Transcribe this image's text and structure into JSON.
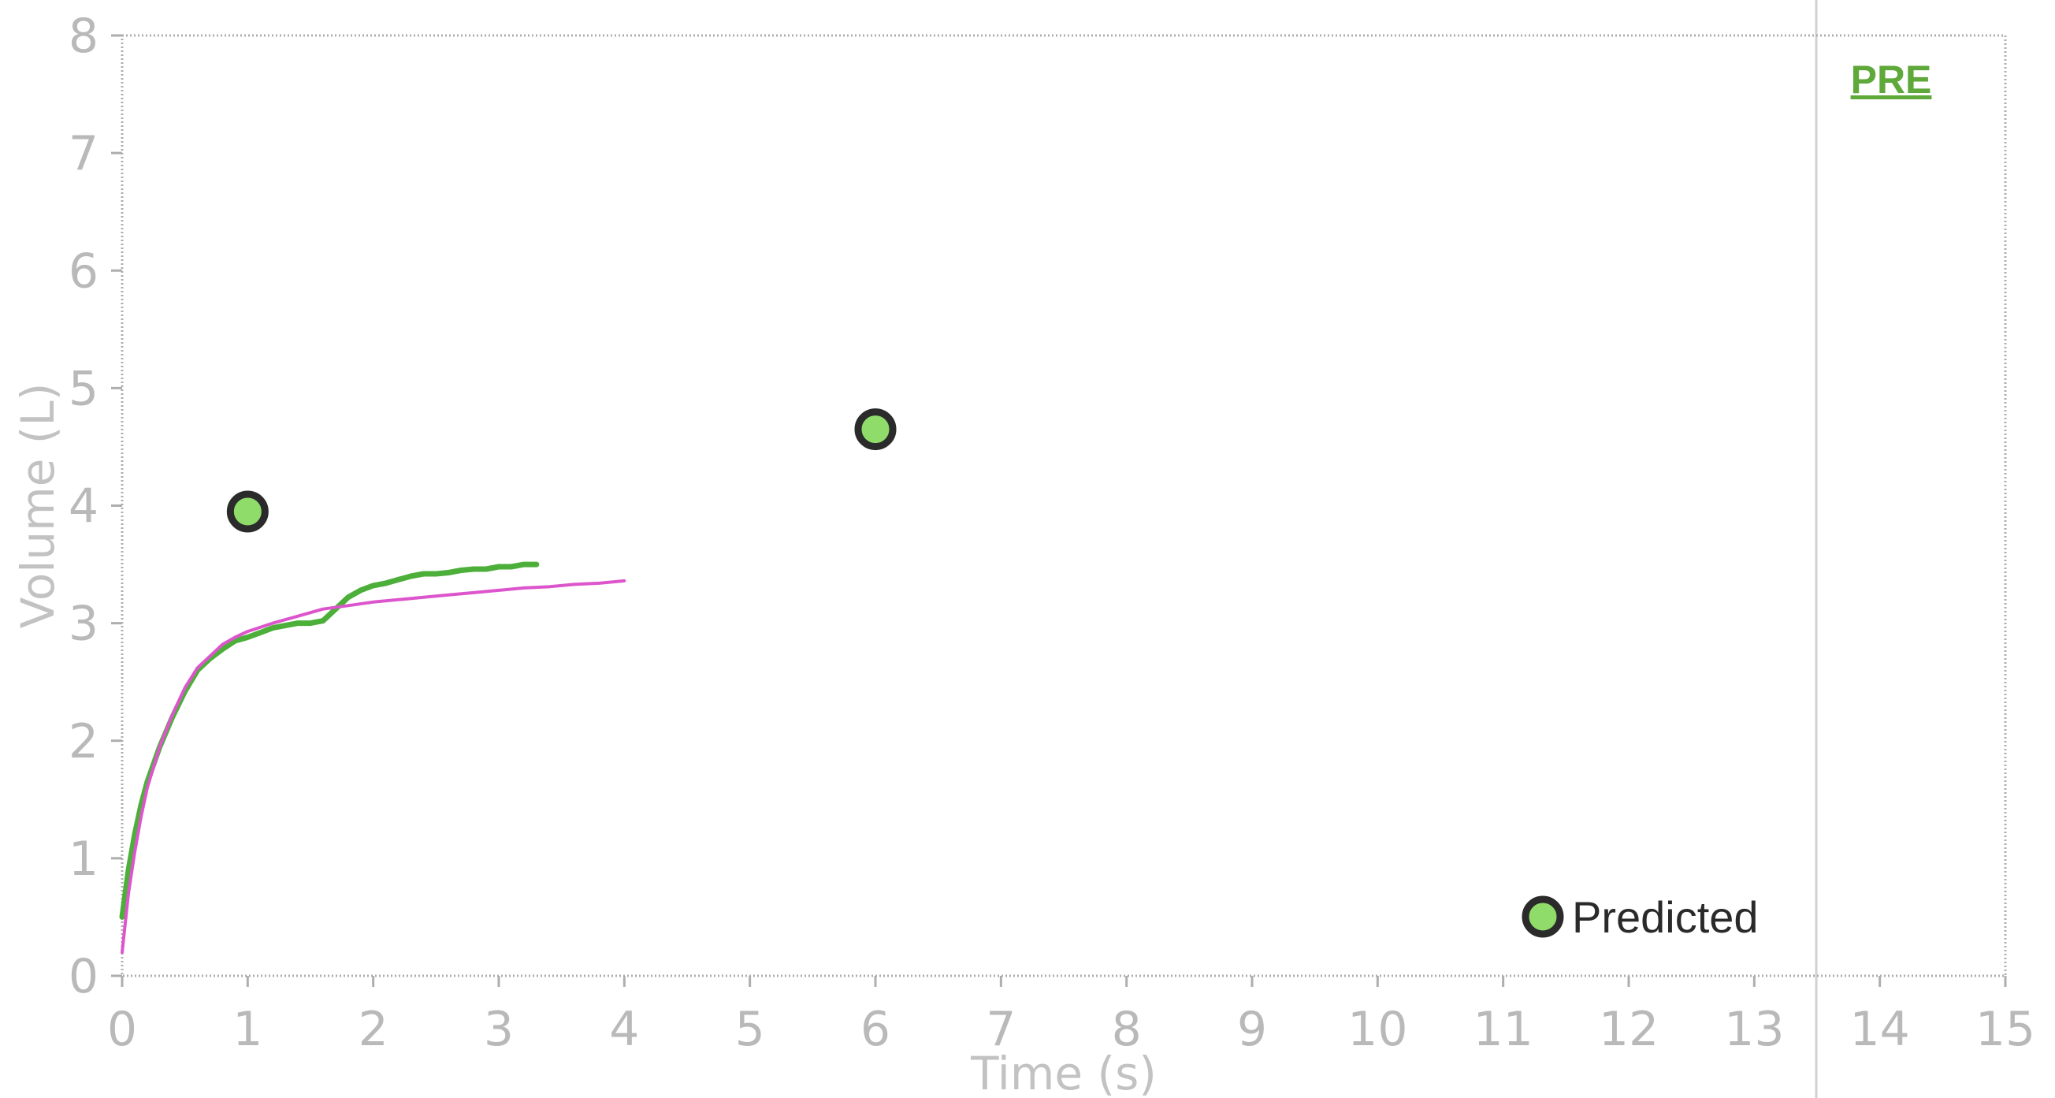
{
  "chart_data": {
    "type": "line",
    "title": "",
    "xlabel": "Time (s)",
    "ylabel": "Volume (L)",
    "xlim": [
      0,
      15
    ],
    "ylim": [
      0,
      8
    ],
    "x_ticks": [
      0,
      1,
      2,
      3,
      4,
      5,
      6,
      7,
      8,
      9,
      10,
      11,
      12,
      13,
      14,
      15
    ],
    "y_ticks": [
      0,
      1,
      2,
      3,
      4,
      5,
      6,
      7,
      8
    ],
    "grid": false,
    "colors": {
      "series_1": "#4caf3a",
      "series_2": "#dd55cc",
      "predicted": "#8fdc6a",
      "pre_label": "#5fa83a"
    },
    "series": [
      {
        "x": [
          0,
          0.05,
          0.1,
          0.15,
          0.2,
          0.3,
          0.4,
          0.5,
          0.6,
          0.7,
          0.8,
          0.9,
          1.0,
          1.1,
          1.2,
          1.3,
          1.4,
          1.5,
          1.6,
          1.7,
          1.8,
          1.9,
          2.0,
          2.1,
          2.2,
          2.3,
          2.4,
          2.5,
          2.6,
          2.7,
          2.8,
          2.9,
          3.0,
          3.1,
          3.2,
          3.3
        ],
        "values": [
          0.5,
          0.9,
          1.2,
          1.45,
          1.65,
          1.95,
          2.2,
          2.42,
          2.6,
          2.7,
          2.78,
          2.85,
          2.88,
          2.92,
          2.96,
          2.98,
          3.0,
          3.0,
          3.02,
          3.12,
          3.22,
          3.28,
          3.32,
          3.34,
          3.37,
          3.4,
          3.42,
          3.42,
          3.43,
          3.45,
          3.46,
          3.46,
          3.48,
          3.48,
          3.5,
          3.5
        ]
      },
      {
        "x": [
          0,
          0.05,
          0.1,
          0.15,
          0.2,
          0.3,
          0.4,
          0.5,
          0.6,
          0.7,
          0.8,
          0.9,
          1.0,
          1.2,
          1.4,
          1.6,
          1.8,
          2.0,
          2.2,
          2.4,
          2.6,
          2.8,
          3.0,
          3.2,
          3.4,
          3.6,
          3.8,
          4.0
        ],
        "values": [
          0.2,
          0.7,
          1.05,
          1.35,
          1.6,
          1.95,
          2.22,
          2.45,
          2.62,
          2.72,
          2.82,
          2.88,
          2.93,
          3.0,
          3.06,
          3.12,
          3.15,
          3.18,
          3.2,
          3.22,
          3.24,
          3.26,
          3.28,
          3.3,
          3.31,
          3.33,
          3.34,
          3.36
        ]
      }
    ],
    "predicted_points": [
      {
        "x": 1,
        "y": 3.95
      },
      {
        "x": 6,
        "y": 4.65
      }
    ],
    "legend": {
      "label": "Predicted",
      "placement": "bottom-right"
    },
    "annotation": "PRE"
  }
}
